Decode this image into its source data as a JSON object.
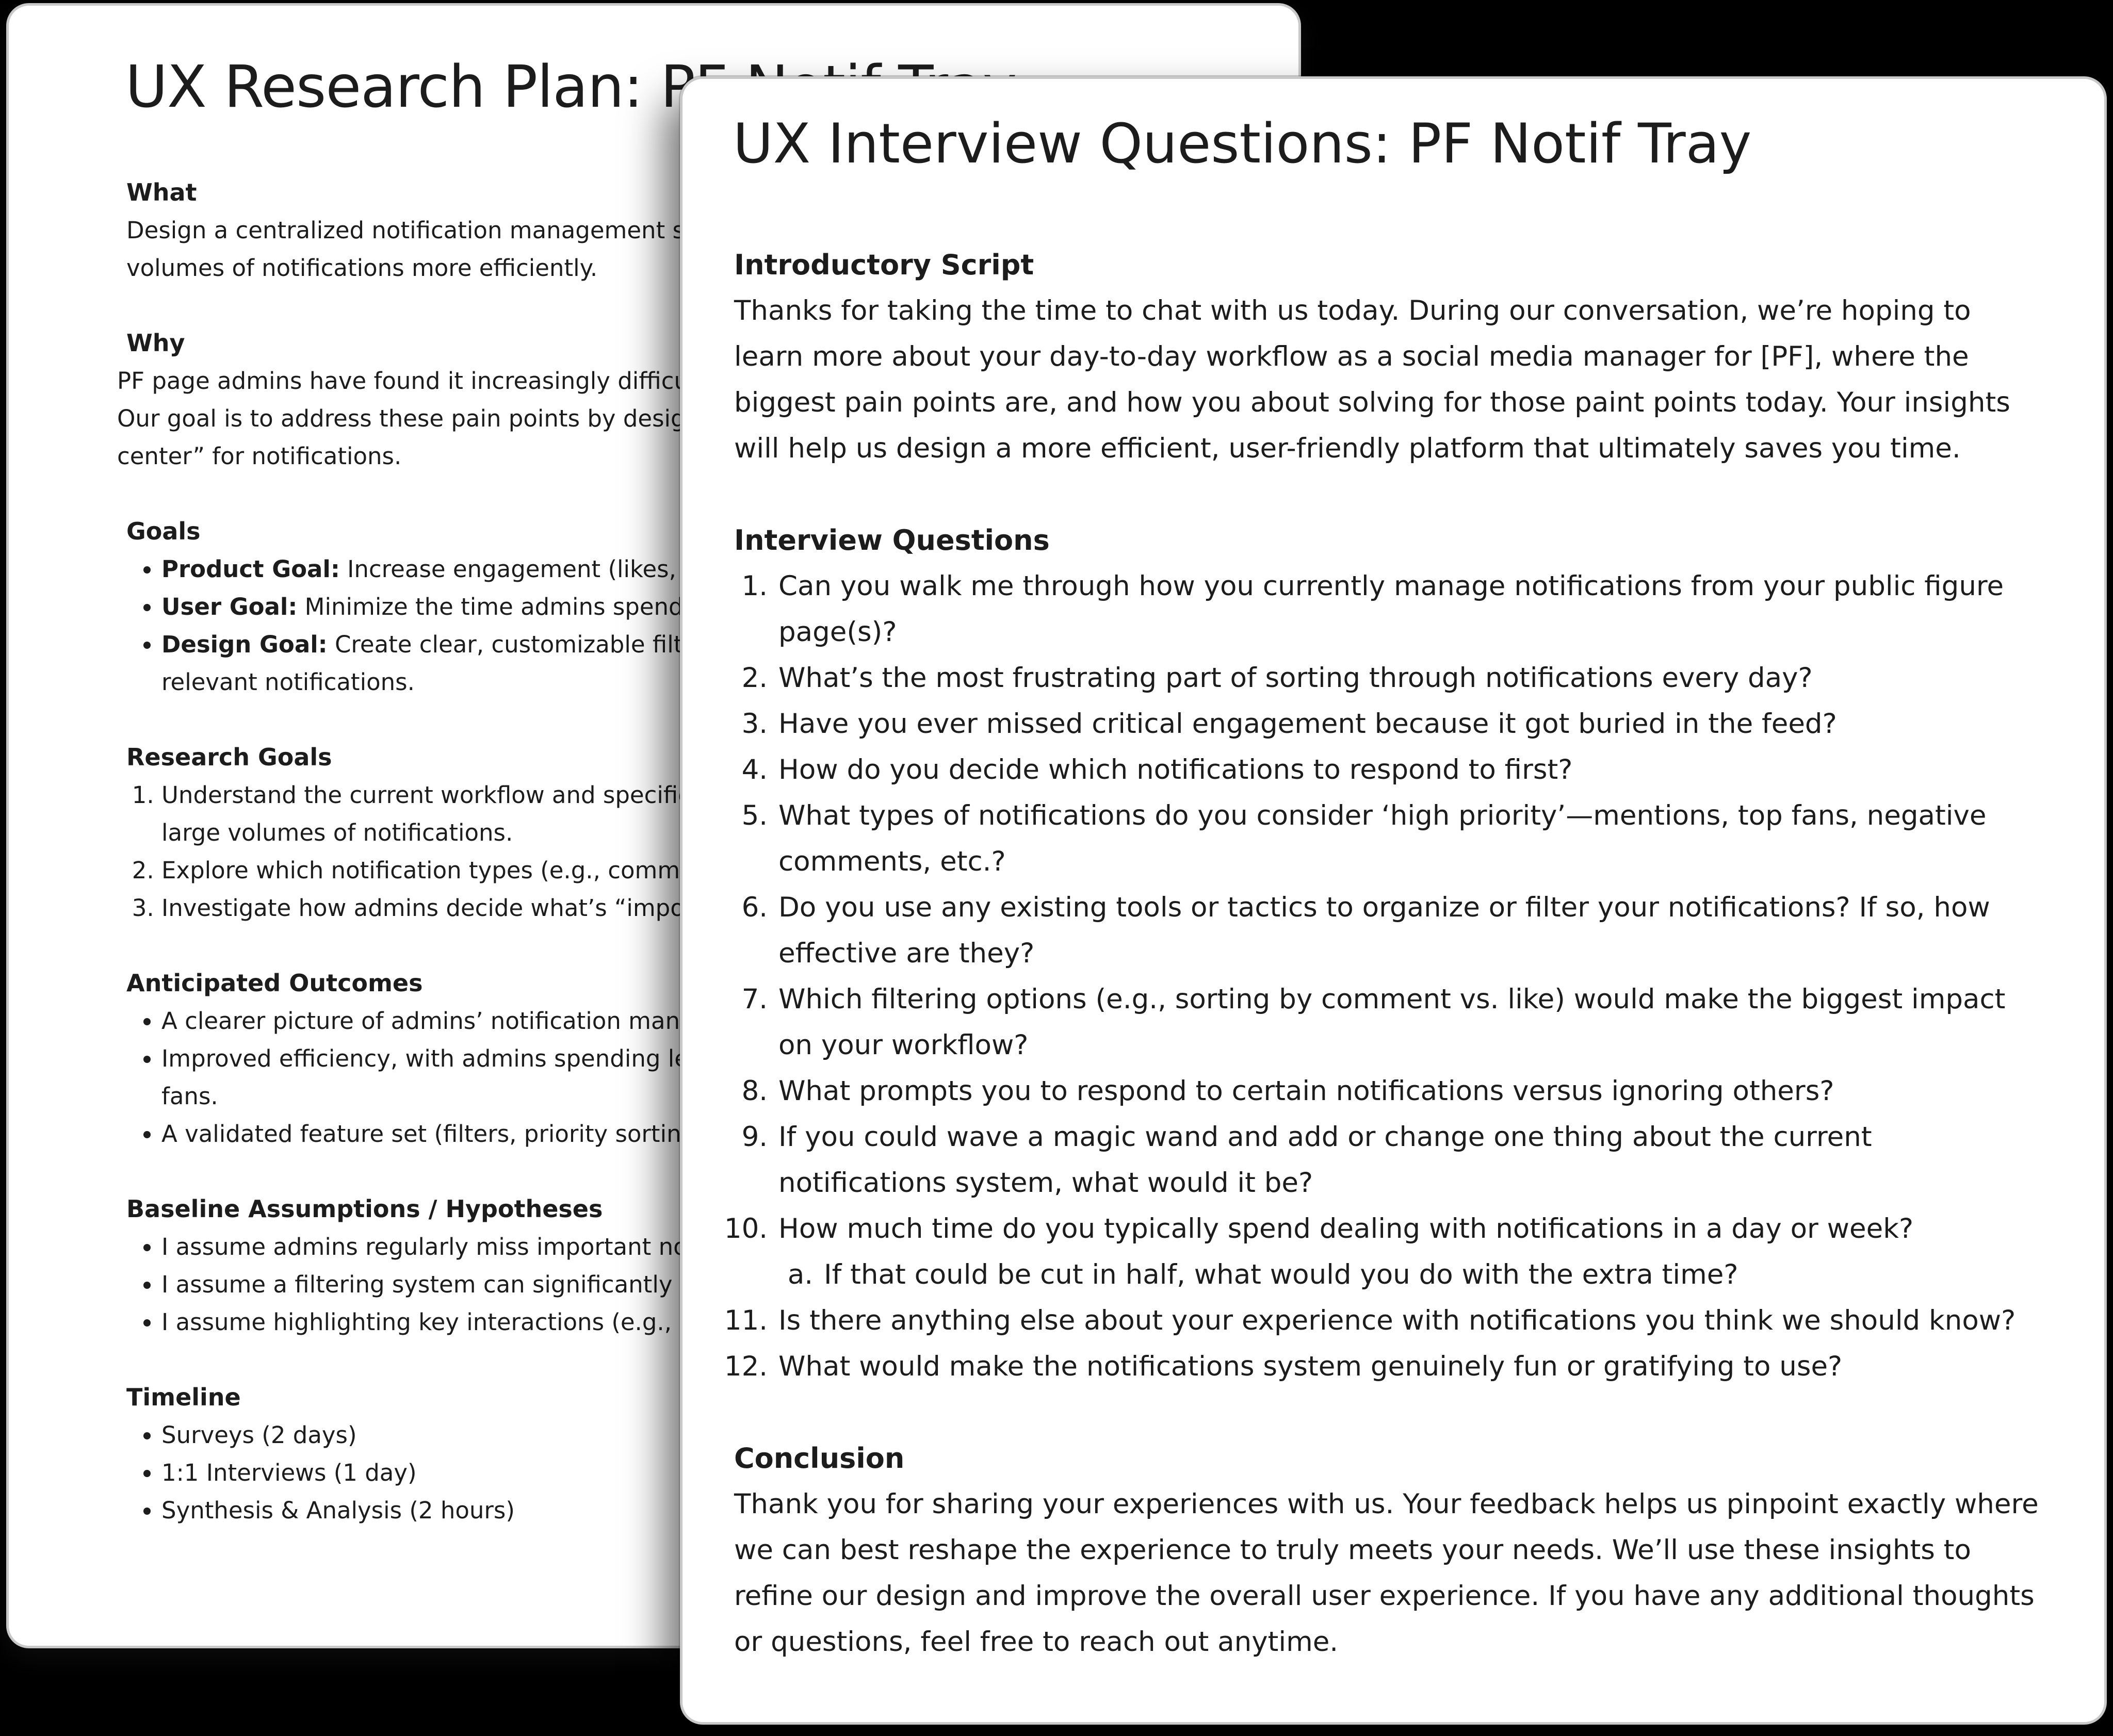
{
  "research_plan": {
    "title": "UX Research Plan: PF Notif Tray",
    "what": {
      "heading": "What",
      "text": "Design a centralized notification management system that helps page admins handle large volumes of notifications more efficiently."
    },
    "why": {
      "heading": "Why",
      "text": "PF page admins have found it increasingly difficult to keep up with and prioritize fan interactions. Our goal is to address these pain points by designing a notification tray that acts as a “command center” for notifications."
    },
    "goals": {
      "heading": "Goals",
      "items": [
        {
          "label": "Product Goal:",
          "text": " Increase engagement (likes, comments, replies) on PF pages."
        },
        {
          "label": "User Goal:",
          "text": " Minimize the time admins spend scrolling through notifications."
        },
        {
          "label": "Design Goal:",
          "text": " Create clear, customizable filters and sorting options that surface the most relevant notifications."
        }
      ]
    },
    "research_goals": {
      "heading": "Research Goals",
      "items": [
        "Understand the current workflow and specific pain points admins face when dealing with large volumes of notifications.",
        "Explore which notification types (e.g., comments, mentions, likes) admins value most.",
        "Investigate how admins decide what’s “important” to inform prioritization features."
      ]
    },
    "anticipated_outcomes": {
      "heading": "Anticipated Outcomes",
      "items": [
        "A clearer picture of admins’ notification management habits.",
        "Improved efficiency, with admins spending less time sorting and more time engaging with fans.",
        "A validated feature set (filters, priority sorting, highlights) for the notification tray."
      ]
    },
    "assumptions": {
      "heading": "Baseline Assumptions / Hypotheses",
      "items": [
        "I assume admins regularly miss important notifications.",
        "I assume a filtering system can significantly reduce time spent on notifications.",
        "I assume highlighting key interactions (e.g., mentions, top fans) will increase engagement."
      ]
    },
    "timeline": {
      "heading": "Timeline",
      "items": [
        "Surveys (2 days)",
        "1:1 Interviews (1 day)",
        "Synthesis & Analysis (2 hours)"
      ]
    }
  },
  "interview_questions": {
    "title": "UX Interview Questions: PF Notif Tray",
    "intro": {
      "heading": "Introductory Script",
      "text": "Thanks for taking the time to chat with us today. During our conversation, we’re hoping to learn more about your day-to-day workflow as a social media manager for [PF], where the biggest pain points are, and how you about solving for those paint points today. Your insights will help us design a more efficient, user-friendly platform that ultimately saves you time."
    },
    "questions": {
      "heading": "Interview Questions",
      "items": [
        "Can you walk me through how you currently manage notifications from your public figure page(s)?",
        "What’s the most frustrating part of sorting through notifications every day?",
        "Have you ever missed critical engagement because it got buried in the feed?",
        "How do you decide which notifications to respond to first?",
        "What types of notifications do you consider ‘high priority’—mentions, top fans, negative comments, etc.?",
        "Do you use any existing tools or tactics to organize or filter your notifications? If so, how effective are they?",
        "Which filtering options (e.g., sorting by comment vs. like) would make the biggest impact on your workflow?",
        "What prompts you to respond to certain notifications versus ignoring others?",
        "If you could wave a magic wand and add or change one thing about the current notifications system, what would it be?",
        "How much time do you typically spend dealing with notifications in a day or week?",
        "Is there anything else about your experience with notifications you think we should know?",
        "What would make the notifications system genuinely fun or gratifying to use?"
      ],
      "sub_item_10": "If that could be cut in half, what would you do with the extra time?"
    },
    "conclusion": {
      "heading": "Conclusion",
      "text": "Thank you for sharing your experiences with us. Your feedback helps us pinpoint exactly where we can best reshape the experience to truly meets your needs. We’ll use these insights to refine our design and improve the overall user experience. If you have any additional thoughts or questions, feel free to reach out anytime."
    }
  }
}
